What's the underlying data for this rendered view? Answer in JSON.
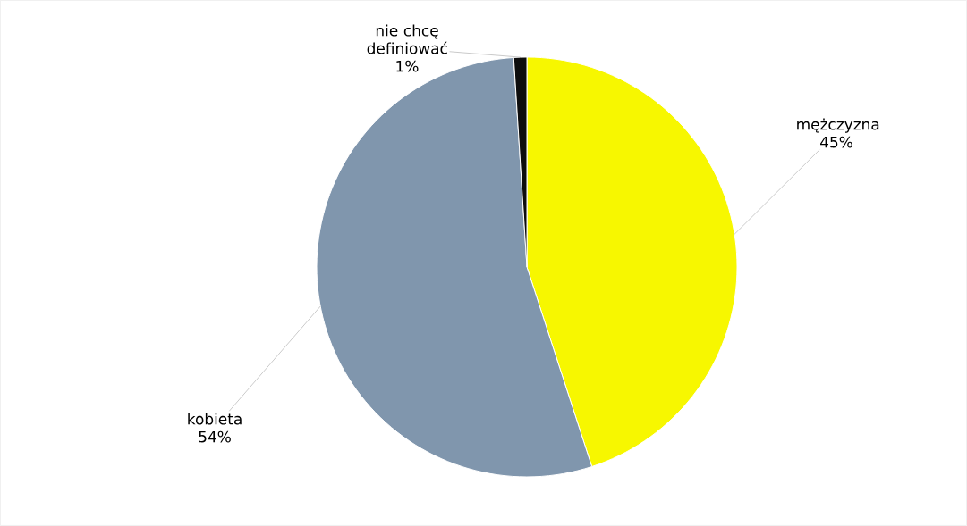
{
  "chart_data": {
    "type": "pie",
    "categories": [
      "mężczyzna",
      "kobieta",
      "nie chcę definiować"
    ],
    "values": [
      45,
      54,
      1
    ],
    "value_labels": [
      "45%",
      "54%",
      "1%"
    ],
    "colors": [
      "#f7f700",
      "#8096ad",
      "#0d0d0d"
    ]
  }
}
